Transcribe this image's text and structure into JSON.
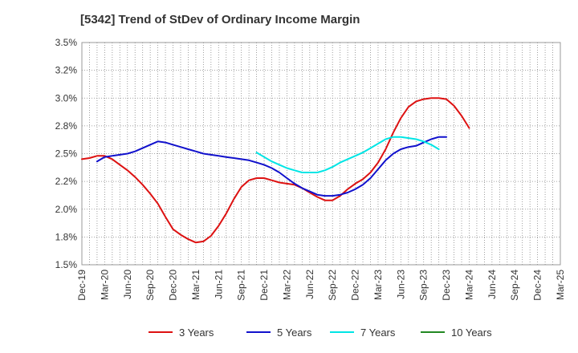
{
  "chart_data": {
    "type": "line",
    "title": "[5342]  Trend of StDev of Ordinary Income Margin",
    "xlabel": "",
    "ylabel": "",
    "ylim": [
      1.5,
      3.5
    ],
    "y_ticks": [
      1.5,
      1.75,
      2.0,
      2.25,
      2.5,
      2.75,
      3.0,
      3.25,
      3.5
    ],
    "y_tick_labels": [
      "1.5%",
      "1.8%",
      "2.0%",
      "2.2%",
      "2.5%",
      "2.8%",
      "3.0%",
      "3.2%",
      "3.5%"
    ],
    "x_tick_labels": [
      "Dec-19",
      "Mar-20",
      "Jun-20",
      "Sep-20",
      "Dec-20",
      "Mar-21",
      "Jun-21",
      "Sep-21",
      "Dec-21",
      "Mar-22",
      "Jun-22",
      "Sep-22",
      "Dec-22",
      "Mar-23",
      "Jun-23",
      "Sep-23",
      "Dec-23",
      "Mar-24",
      "Jun-24",
      "Sep-24",
      "Dec-24",
      "Mar-25"
    ],
    "grid": true,
    "legend_position": "bottom",
    "series": [
      {
        "name": "3 Years",
        "color": "#dd1111",
        "values": [
          [
            0,
            2.45
          ],
          [
            1,
            2.46
          ],
          [
            2,
            2.48
          ],
          [
            3,
            2.48
          ],
          [
            4,
            2.45
          ],
          [
            5,
            2.4
          ],
          [
            6,
            2.35
          ],
          [
            7,
            2.29
          ],
          [
            8,
            2.22
          ],
          [
            9,
            2.14
          ],
          [
            10,
            2.05
          ],
          [
            11,
            1.93
          ],
          [
            12,
            1.82
          ],
          [
            13,
            1.77
          ],
          [
            14,
            1.73
          ],
          [
            15,
            1.7
          ],
          [
            16,
            1.71
          ],
          [
            17,
            1.76
          ],
          [
            18,
            1.85
          ],
          [
            19,
            1.96
          ],
          [
            20,
            2.09
          ],
          [
            21,
            2.2
          ],
          [
            22,
            2.26
          ],
          [
            23,
            2.28
          ],
          [
            24,
            2.28
          ],
          [
            25,
            2.26
          ],
          [
            26,
            2.24
          ],
          [
            27,
            2.23
          ],
          [
            28,
            2.22
          ],
          [
            29,
            2.19
          ],
          [
            30,
            2.15
          ],
          [
            31,
            2.11
          ],
          [
            32,
            2.08
          ],
          [
            33,
            2.08
          ],
          [
            34,
            2.12
          ],
          [
            35,
            2.18
          ],
          [
            36,
            2.23
          ],
          [
            37,
            2.27
          ],
          [
            38,
            2.33
          ],
          [
            39,
            2.42
          ],
          [
            40,
            2.54
          ],
          [
            41,
            2.69
          ],
          [
            42,
            2.82
          ],
          [
            43,
            2.92
          ],
          [
            44,
            2.97
          ],
          [
            45,
            2.99
          ],
          [
            46,
            3.0
          ],
          [
            47,
            3.0
          ],
          [
            48,
            2.99
          ],
          [
            49,
            2.93
          ],
          [
            50,
            2.84
          ],
          [
            51,
            2.73
          ]
        ]
      },
      {
        "name": "5 Years",
        "color": "#1111cc",
        "values": [
          [
            2,
            2.43
          ],
          [
            3,
            2.47
          ],
          [
            4,
            2.48
          ],
          [
            5,
            2.49
          ],
          [
            6,
            2.5
          ],
          [
            7,
            2.52
          ],
          [
            8,
            2.55
          ],
          [
            9,
            2.58
          ],
          [
            10,
            2.61
          ],
          [
            11,
            2.6
          ],
          [
            12,
            2.58
          ],
          [
            13,
            2.56
          ],
          [
            14,
            2.54
          ],
          [
            15,
            2.52
          ],
          [
            16,
            2.5
          ],
          [
            17,
            2.49
          ],
          [
            18,
            2.48
          ],
          [
            19,
            2.47
          ],
          [
            20,
            2.46
          ],
          [
            21,
            2.45
          ],
          [
            22,
            2.44
          ],
          [
            23,
            2.42
          ],
          [
            24,
            2.4
          ],
          [
            25,
            2.37
          ],
          [
            26,
            2.33
          ],
          [
            27,
            2.28
          ],
          [
            28,
            2.23
          ],
          [
            29,
            2.19
          ],
          [
            30,
            2.16
          ],
          [
            31,
            2.13
          ],
          [
            32,
            2.12
          ],
          [
            33,
            2.12
          ],
          [
            34,
            2.13
          ],
          [
            35,
            2.15
          ],
          [
            36,
            2.18
          ],
          [
            37,
            2.22
          ],
          [
            38,
            2.28
          ],
          [
            39,
            2.36
          ],
          [
            40,
            2.44
          ],
          [
            41,
            2.5
          ],
          [
            42,
            2.54
          ],
          [
            43,
            2.56
          ],
          [
            44,
            2.57
          ],
          [
            45,
            2.6
          ],
          [
            46,
            2.63
          ],
          [
            47,
            2.65
          ],
          [
            48,
            2.65
          ]
        ]
      },
      {
        "name": "7 Years",
        "color": "#00e5e5",
        "values": [
          [
            23,
            2.51
          ],
          [
            24,
            2.47
          ],
          [
            25,
            2.43
          ],
          [
            26,
            2.4
          ],
          [
            27,
            2.37
          ],
          [
            28,
            2.35
          ],
          [
            29,
            2.33
          ],
          [
            30,
            2.33
          ],
          [
            31,
            2.33
          ],
          [
            32,
            2.35
          ],
          [
            33,
            2.38
          ],
          [
            34,
            2.42
          ],
          [
            35,
            2.45
          ],
          [
            36,
            2.48
          ],
          [
            37,
            2.51
          ],
          [
            38,
            2.55
          ],
          [
            39,
            2.59
          ],
          [
            40,
            2.63
          ],
          [
            41,
            2.65
          ],
          [
            42,
            2.65
          ],
          [
            43,
            2.64
          ],
          [
            44,
            2.63
          ],
          [
            45,
            2.61
          ],
          [
            46,
            2.58
          ],
          [
            47,
            2.54
          ]
        ]
      },
      {
        "name": "10 Years",
        "color": "#228822",
        "values": []
      }
    ]
  }
}
